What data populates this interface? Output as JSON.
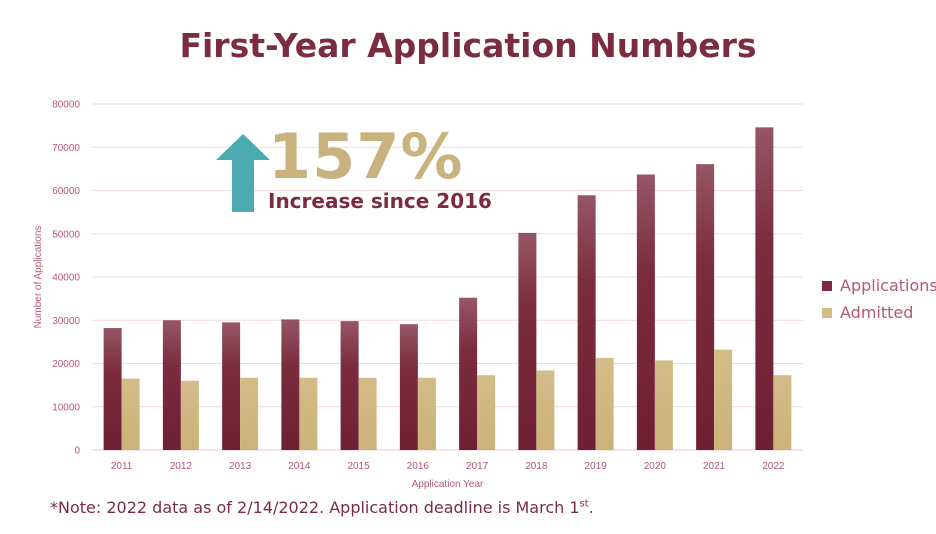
{
  "chart_data": {
    "type": "bar",
    "title": "First-Year Application Numbers",
    "xlabel": "Application Year",
    "ylabel": "Number of Applications",
    "categories": [
      "2011",
      "2012",
      "2013",
      "2014",
      "2015",
      "2016",
      "2017",
      "2018",
      "2019",
      "2020",
      "2021",
      "2022"
    ],
    "series": [
      {
        "name": "Applications",
        "color": "#7b2c3f",
        "values": [
          28200,
          30000,
          29500,
          30200,
          29800,
          29100,
          35200,
          50200,
          58900,
          63700,
          66100,
          74600
        ]
      },
      {
        "name": "Admitted",
        "color": "#d3bc88",
        "values": [
          16500,
          16000,
          16700,
          16700,
          16700,
          16700,
          17300,
          18400,
          21300,
          20700,
          23200,
          17300
        ]
      }
    ],
    "ylim": [
      0,
      80000
    ],
    "yticks": [
      "0",
      "10000",
      "20000",
      "30000",
      "40000",
      "50000",
      "60000",
      "70000",
      "80000"
    ],
    "grid": true,
    "legend_position": "right"
  },
  "callout": {
    "percent": "157%",
    "text": "Increase since 2016"
  },
  "note": {
    "text": "*Note: 2022 data as of 2/14/2022. Application deadline is March 1",
    "superscript": "st",
    "end": "."
  }
}
